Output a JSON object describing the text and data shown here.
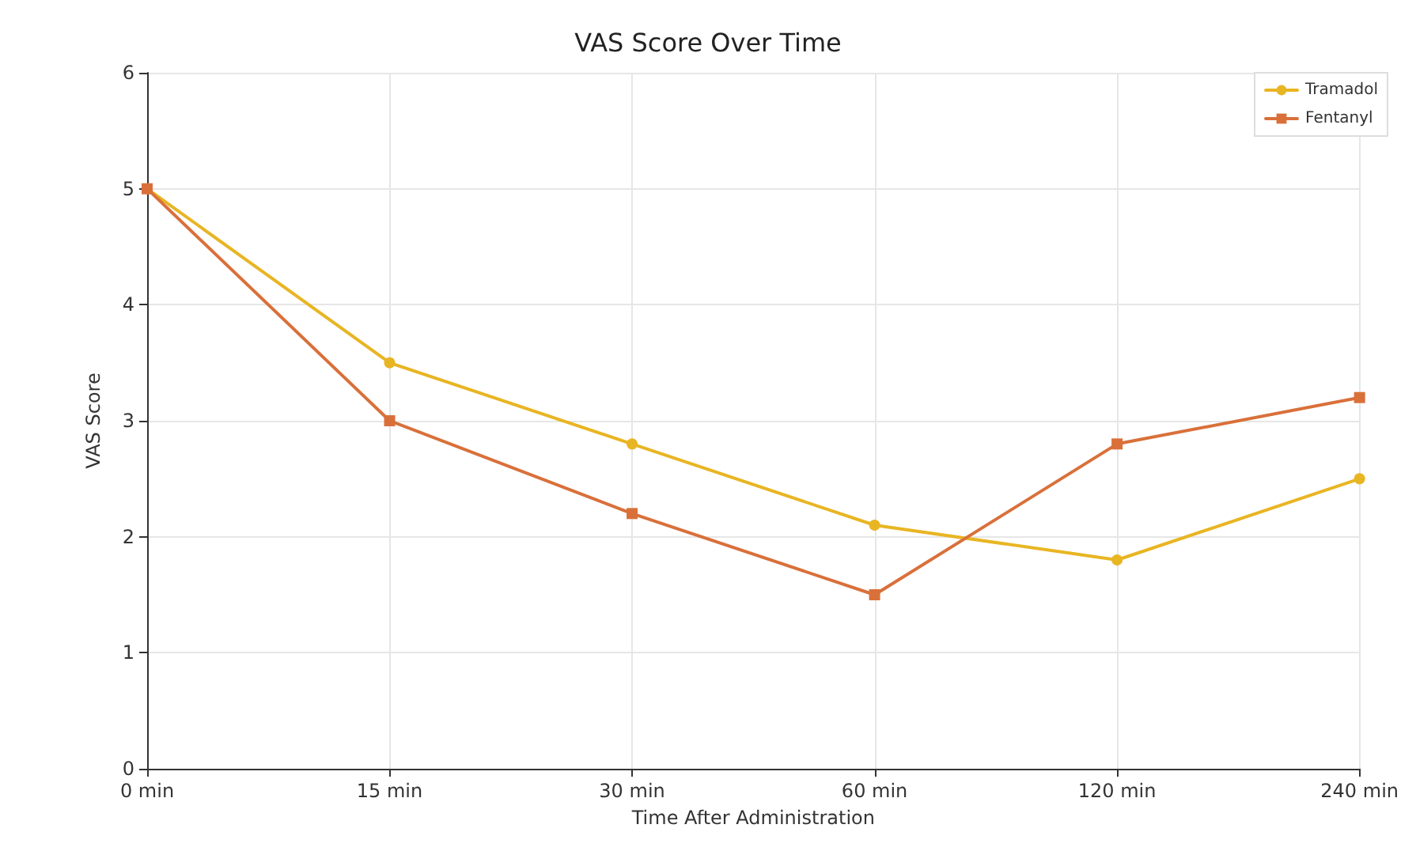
{
  "chart_data": {
    "type": "line",
    "title": "VAS Score Over Time",
    "xlabel": "Time After Administration",
    "ylabel": "VAS Score",
    "categories": [
      "0 min",
      "15 min",
      "30 min",
      "60 min",
      "120 min",
      "240 min"
    ],
    "series": [
      {
        "name": "Tramadol",
        "color": "#e8b523",
        "marker": "circle",
        "values": [
          5,
          3.5,
          2.8,
          2.1,
          1.8,
          2.5
        ]
      },
      {
        "name": "Fentanyl",
        "color": "#d9703a",
        "marker": "square",
        "values": [
          5,
          3.0,
          2.2,
          1.5,
          2.8,
          3.2
        ]
      }
    ],
    "ylim": [
      0,
      6
    ],
    "yticks": [
      0,
      1,
      2,
      3,
      4,
      5,
      6
    ],
    "grid": true,
    "legend": "top right",
    "line_style": "solid"
  }
}
